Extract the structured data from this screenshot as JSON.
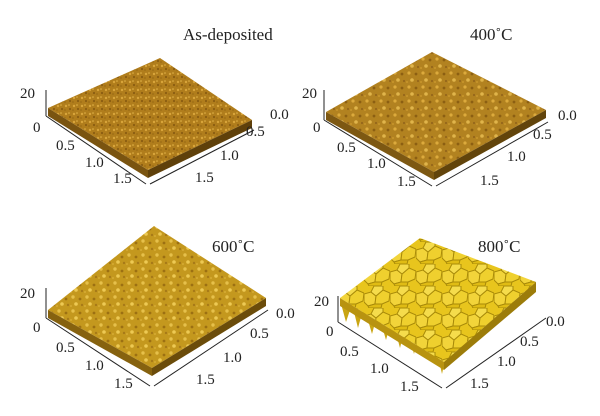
{
  "panels": [
    {
      "id": "as-deposited",
      "label": "As-deposited",
      "z_tick": "20",
      "left_axis_ticks": [
        "0",
        "0.5",
        "1.0",
        "1.5"
      ],
      "right_axis_ticks": [
        "0.0",
        "0.5",
        "1.0",
        "1.5"
      ],
      "surface_color": "#b07d1c",
      "texture": "fine-grain"
    },
    {
      "id": "400c",
      "label": "400˚C",
      "z_tick": "20",
      "left_axis_ticks": [
        "0",
        "0.5",
        "1.0",
        "1.5"
      ],
      "right_axis_ticks": [
        "0.0",
        "0.5",
        "1.0",
        "1.5"
      ],
      "surface_color": "#b28220",
      "texture": "mottled"
    },
    {
      "id": "600c",
      "label": "600˚C",
      "z_tick": "20",
      "left_axis_ticks": [
        "0",
        "0.5",
        "1.0",
        "1.5"
      ],
      "right_axis_ticks": [
        "0.0",
        "0.5",
        "1.0",
        "1.5"
      ],
      "surface_color": "#c4981e",
      "texture": "mottled"
    },
    {
      "id": "800c",
      "label": "800˚C",
      "z_tick": "20",
      "left_axis_ticks": [
        "0",
        "0.5",
        "1.0",
        "1.5"
      ],
      "right_axis_ticks": [
        "0.0",
        "0.5",
        "1.0",
        "1.5"
      ],
      "surface_color": "#e6c21c",
      "texture": "large-grains"
    }
  ]
}
